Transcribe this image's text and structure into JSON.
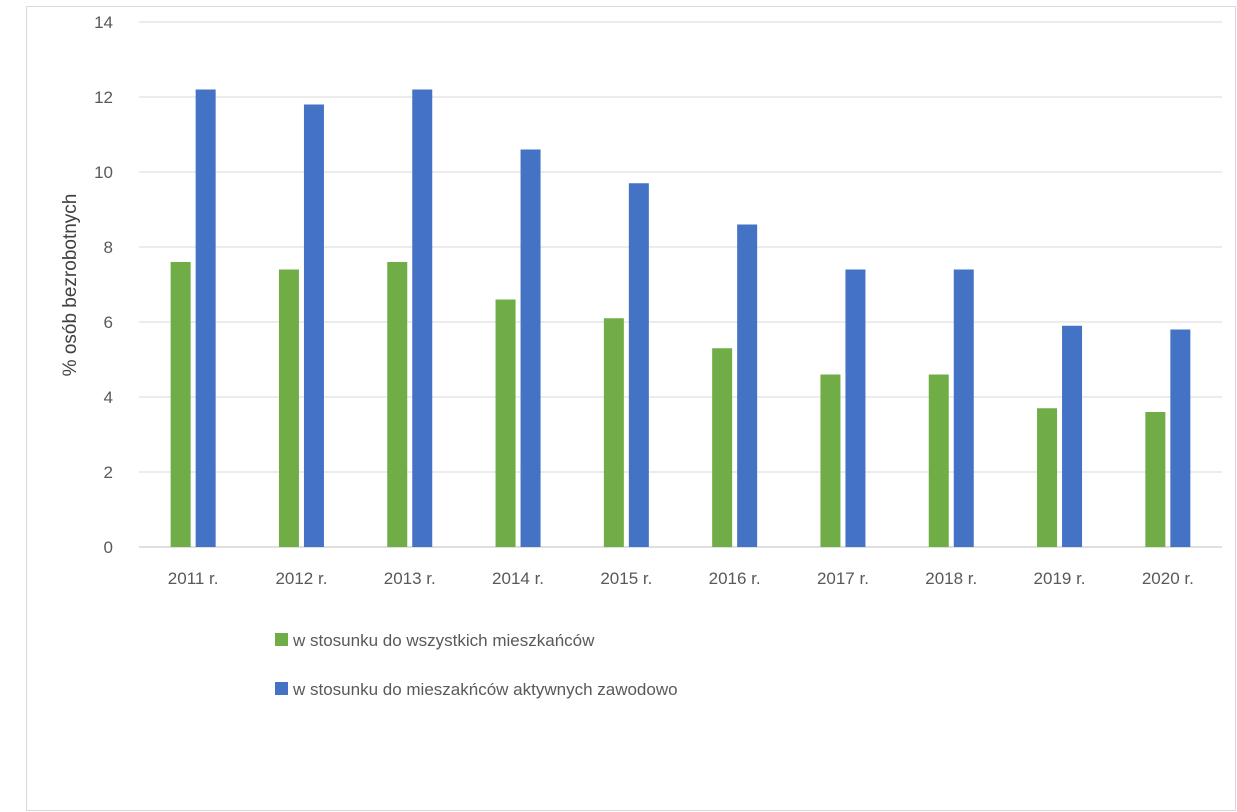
{
  "chart_data": {
    "type": "bar",
    "title": "",
    "xlabel": "",
    "ylabel": "% osób bezrobotnych",
    "ylim": [
      0,
      14
    ],
    "yticks": [
      0,
      2,
      4,
      6,
      8,
      10,
      12,
      14
    ],
    "grid": true,
    "legend_position": "bottom-left",
    "categories": [
      "2011 r.",
      "2012 r.",
      "2013 r.",
      "2014 r.",
      "2015 r.",
      "2016 r.",
      "2017 r.",
      "2018 r.",
      "2019 r.",
      "2020 r."
    ],
    "series": [
      {
        "name": "w stosunku do wszystkich mieszkańców",
        "color": "#70ad47",
        "values": [
          7.6,
          7.4,
          7.6,
          6.6,
          6.1,
          5.3,
          4.6,
          4.6,
          3.7,
          3.6
        ]
      },
      {
        "name": "w stosunku do mieszakńców aktywnych zawodowo",
        "color": "#4472c4",
        "values": [
          12.2,
          11.8,
          12.2,
          10.6,
          9.7,
          8.6,
          7.4,
          7.4,
          5.9,
          5.8
        ]
      }
    ]
  }
}
